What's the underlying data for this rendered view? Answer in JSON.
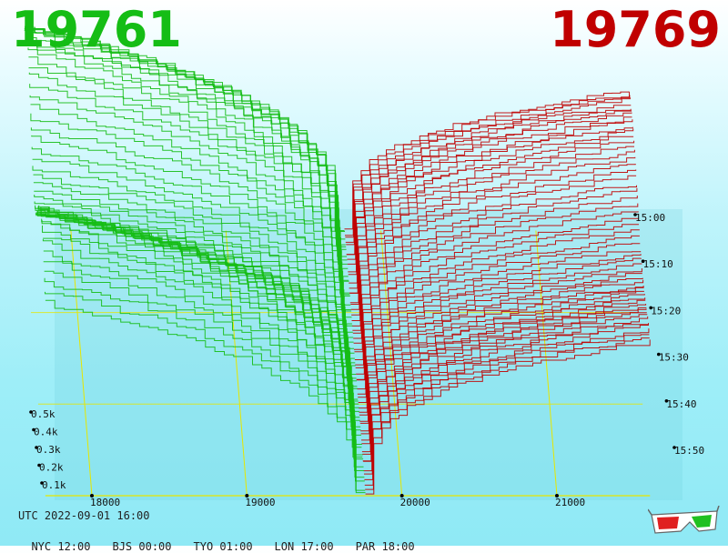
{
  "header": {
    "bid_price": "19761",
    "ask_price": "19769"
  },
  "footer": {
    "utc": "UTC 2022-09-01 16:00",
    "zones": [
      {
        "label": "NYC 12:00"
      },
      {
        "label": "BJS 00:00"
      },
      {
        "label": "TYO 01:00"
      },
      {
        "label": "LON 17:00"
      },
      {
        "label": "PAR 18:00"
      }
    ]
  },
  "icons": {
    "glasses": "3d-glasses-icon"
  },
  "colors": {
    "bid": "#15bd15",
    "ask": "#c00000",
    "grid": "#e6e600",
    "mid": "#8a2be2"
  },
  "chart_data": {
    "type": "area",
    "title": "",
    "x_axis": {
      "label": "",
      "range": [
        17500,
        21500
      ],
      "ticks": [
        18000,
        19000,
        20000,
        21000
      ]
    },
    "y_axis": {
      "label": "",
      "ticks": [
        "0.1k",
        "0.2k",
        "0.3k",
        "0.4k",
        "0.5k"
      ]
    },
    "time_axis": {
      "label": "",
      "ticks": [
        "15:00",
        "15:10",
        "15:20",
        "15:30",
        "15:40",
        "15:50"
      ]
    },
    "mid_price": 19765,
    "series": [
      {
        "side": "bid",
        "outer_price": 17700
      },
      {
        "side": "ask",
        "outer_price": 21600
      }
    ]
  }
}
